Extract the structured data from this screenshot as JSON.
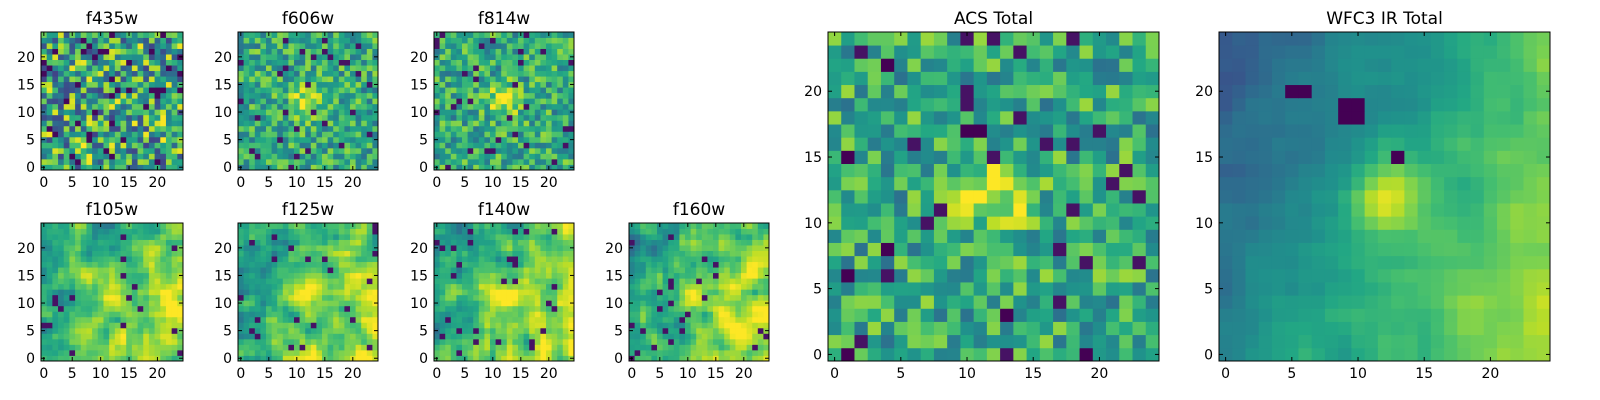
{
  "chart_data": [
    {
      "type": "heatmap",
      "title": "f435w",
      "colormap": "viridis",
      "grid_size": 25,
      "xlim": [
        -0.5,
        24.5
      ],
      "ylim": [
        -0.5,
        24.5
      ],
      "xticks": [
        0,
        5,
        10,
        15,
        20
      ],
      "yticks": [
        0,
        5,
        10,
        15,
        20
      ],
      "xtick_labels": [
        "0",
        "5",
        "10",
        "15",
        "20"
      ],
      "ytick_labels": [
        "0",
        "5",
        "10",
        "15",
        "20"
      ],
      "pattern": "noise",
      "seed": 11
    },
    {
      "type": "heatmap",
      "title": "f606w",
      "colormap": "viridis",
      "grid_size": 25,
      "xlim": [
        -0.5,
        24.5
      ],
      "ylim": [
        -0.5,
        24.5
      ],
      "xticks": [
        0,
        5,
        10,
        15,
        20
      ],
      "yticks": [
        0,
        5,
        10,
        15,
        20
      ],
      "xtick_labels": [
        "0",
        "5",
        "10",
        "15",
        "20"
      ],
      "ytick_labels": [
        "0",
        "5",
        "10",
        "15",
        "20"
      ],
      "pattern": "noise_source",
      "source_center": [
        12,
        12
      ],
      "seed": 23
    },
    {
      "type": "heatmap",
      "title": "f814w",
      "colormap": "viridis",
      "grid_size": 25,
      "xlim": [
        -0.5,
        24.5
      ],
      "ylim": [
        -0.5,
        24.5
      ],
      "xticks": [
        0,
        5,
        10,
        15,
        20
      ],
      "yticks": [
        0,
        5,
        10,
        15,
        20
      ],
      "xtick_labels": [
        "0",
        "5",
        "10",
        "15",
        "20"
      ],
      "ytick_labels": [
        "0",
        "5",
        "10",
        "15",
        "20"
      ],
      "pattern": "noise_source",
      "source_center": [
        12,
        12
      ],
      "seed": 37
    },
    {
      "type": "heatmap",
      "title": "f105w",
      "colormap": "viridis",
      "grid_size": 25,
      "xlim": [
        -0.5,
        24.5
      ],
      "ylim": [
        -0.5,
        24.5
      ],
      "xticks": [
        0,
        5,
        10,
        15,
        20
      ],
      "yticks": [
        0,
        5,
        10,
        15,
        20
      ],
      "xtick_labels": [
        "0",
        "5",
        "10",
        "15",
        "20"
      ],
      "ytick_labels": [
        "0",
        "5",
        "10",
        "15",
        "20"
      ],
      "pattern": "smooth",
      "source_center": [
        12,
        12
      ],
      "seed": 41
    },
    {
      "type": "heatmap",
      "title": "f125w",
      "colormap": "viridis",
      "grid_size": 25,
      "xlim": [
        -0.5,
        24.5
      ],
      "ylim": [
        -0.5,
        24.5
      ],
      "xticks": [
        0,
        5,
        10,
        15,
        20
      ],
      "yticks": [
        0,
        5,
        10,
        15,
        20
      ],
      "xtick_labels": [
        "0",
        "5",
        "10",
        "15",
        "20"
      ],
      "ytick_labels": [
        "0",
        "5",
        "10",
        "15",
        "20"
      ],
      "pattern": "smooth",
      "source_center": [
        12,
        12
      ],
      "seed": 53
    },
    {
      "type": "heatmap",
      "title": "f140w",
      "colormap": "viridis",
      "grid_size": 25,
      "xlim": [
        -0.5,
        24.5
      ],
      "ylim": [
        -0.5,
        24.5
      ],
      "xticks": [
        0,
        5,
        10,
        15,
        20
      ],
      "yticks": [
        0,
        5,
        10,
        15,
        20
      ],
      "xtick_labels": [
        "0",
        "5",
        "10",
        "15",
        "20"
      ],
      "ytick_labels": [
        "0",
        "5",
        "10",
        "15",
        "20"
      ],
      "pattern": "smooth",
      "source_center": [
        12,
        12
      ],
      "seed": 67
    },
    {
      "type": "heatmap",
      "title": "f160w",
      "colormap": "viridis",
      "grid_size": 25,
      "xlim": [
        -0.5,
        24.5
      ],
      "ylim": [
        -0.5,
        24.5
      ],
      "xticks": [
        0,
        5,
        10,
        15,
        20
      ],
      "yticks": [
        0,
        5,
        10,
        15,
        20
      ],
      "xtick_labels": [
        "0",
        "5",
        "10",
        "15",
        "20"
      ],
      "ytick_labels": [
        "0",
        "5",
        "10",
        "15",
        "20"
      ],
      "pattern": "smooth",
      "source_center": [
        12,
        12
      ],
      "seed": 79
    },
    {
      "type": "heatmap",
      "title": "ACS Total",
      "colormap": "viridis",
      "grid_size": 25,
      "xlim": [
        -0.5,
        24.5
      ],
      "ylim": [
        -0.5,
        24.5
      ],
      "xticks": [
        0,
        5,
        10,
        15,
        20
      ],
      "yticks": [
        0,
        5,
        10,
        15,
        20
      ],
      "xtick_labels": [
        "0",
        "5",
        "10",
        "15",
        "20"
      ],
      "ytick_labels": [
        "0",
        "5",
        "10",
        "15",
        "20"
      ],
      "pattern": "noise_source",
      "source_center": [
        12,
        12
      ],
      "seed": 97,
      "dark_pixels": [
        [
          1,
          0
        ],
        [
          19,
          0
        ],
        [
          13,
          3
        ],
        [
          4,
          8
        ],
        [
          1,
          6
        ],
        [
          10,
          17
        ],
        [
          11,
          17
        ],
        [
          1,
          15
        ],
        [
          4,
          22
        ]
      ]
    },
    {
      "type": "heatmap",
      "title": "WFC3 IR Total",
      "colormap": "viridis",
      "grid_size": 25,
      "xlim": [
        -0.5,
        24.5
      ],
      "ylim": [
        -0.5,
        24.5
      ],
      "xticks": [
        0,
        5,
        10,
        15,
        20
      ],
      "yticks": [
        0,
        5,
        10,
        15,
        20
      ],
      "xtick_labels": [
        "0",
        "5",
        "10",
        "15",
        "20"
      ],
      "ytick_labels": [
        "0",
        "5",
        "10",
        "15",
        "20"
      ],
      "pattern": "ir_total",
      "source_center": [
        12,
        12
      ],
      "seed": 101,
      "dark_pixels": [
        [
          5,
          20
        ],
        [
          6,
          20
        ],
        [
          9,
          19
        ],
        [
          10,
          19
        ],
        [
          9,
          18
        ],
        [
          10,
          18
        ],
        [
          13,
          15
        ]
      ]
    }
  ]
}
